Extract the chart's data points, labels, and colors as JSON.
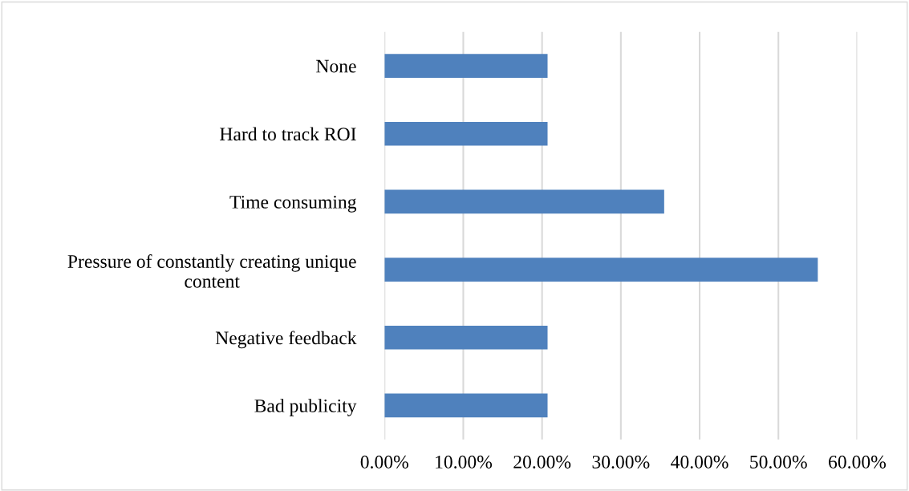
{
  "chart_data": {
    "type": "bar",
    "orientation": "horizontal",
    "categories": [
      "None",
      "Hard to track ROI",
      "Time consuming",
      "Pressure of constantly creating unique\ncontent",
      "Negative feedback",
      "Bad publicity"
    ],
    "values": [
      20.7,
      20.7,
      35.5,
      55.0,
      20.7,
      20.7
    ],
    "color": "#4f81bd",
    "xlim": [
      0,
      60
    ],
    "xticks": [
      {
        "value": 0,
        "label": "0.00%"
      },
      {
        "value": 10,
        "label": "10.00%"
      },
      {
        "value": 20,
        "label": "20.00%"
      },
      {
        "value": 30,
        "label": "30.00%"
      },
      {
        "value": 40,
        "label": "40.00%"
      },
      {
        "value": 50,
        "label": "50.00%"
      },
      {
        "value": 60,
        "label": "60.00%"
      }
    ],
    "grid": "x",
    "legend": false
  }
}
